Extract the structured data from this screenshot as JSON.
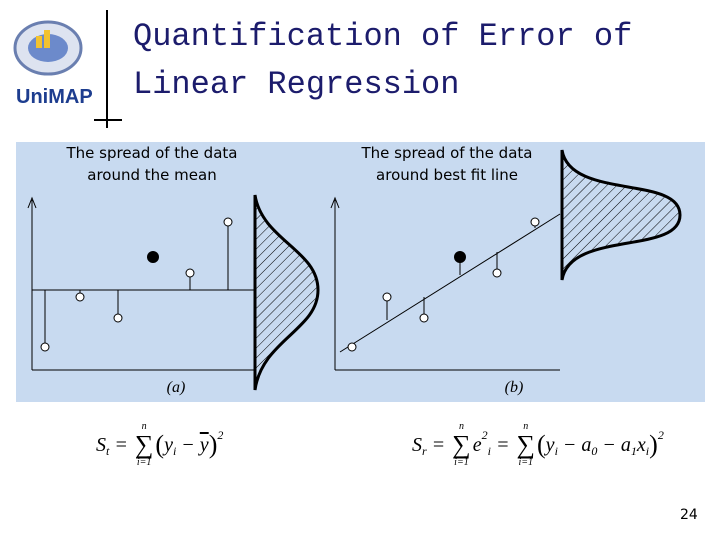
{
  "logo": {
    "text": "UniMAP"
  },
  "header": {
    "title_lines": [
      "Quantification of Error of",
      "Linear Regression"
    ]
  },
  "panels": [
    {
      "caption_lines": [
        "The spread of the data",
        "around the mean"
      ],
      "label": "(a)"
    },
    {
      "caption_lines": [
        "The spread of the data",
        "around best fit line"
      ],
      "label": "(b)"
    }
  ],
  "formulas": [
    {
      "tokens": [
        {
          "text": "S",
          "pos": "base"
        },
        {
          "text": "t",
          "pos": "sub"
        },
        {
          "text": " = ",
          "pos": "op"
        },
        {
          "sigma": "∑",
          "top": "n",
          "bottom": "i=1"
        },
        {
          "text": "(",
          "pos": "paren"
        },
        {
          "text": "y",
          "pos": "base"
        },
        {
          "text": "i",
          "pos": "sub"
        },
        {
          "text": " − ",
          "pos": "op"
        },
        {
          "text": "y",
          "pos": "bar"
        },
        {
          "text": ")",
          "pos": "paren"
        },
        {
          "text": "2",
          "pos": "sup"
        }
      ]
    },
    {
      "tokens": [
        {
          "text": "S",
          "pos": "base"
        },
        {
          "text": "r",
          "pos": "sub"
        },
        {
          "text": " = ",
          "pos": "op"
        },
        {
          "sigma": "∑",
          "top": "n",
          "bottom": "i=1"
        },
        {
          "text": "e",
          "pos": "base"
        },
        {
          "text": "2",
          "pos": "sup"
        },
        {
          "text": "i",
          "pos": "sub"
        },
        {
          "text": " = ",
          "pos": "op"
        },
        {
          "sigma": "∑",
          "top": "n",
          "bottom": "i=1"
        },
        {
          "text": "(",
          "pos": "paren"
        },
        {
          "text": "y",
          "pos": "base"
        },
        {
          "text": "i",
          "pos": "sub"
        },
        {
          "text": " − a",
          "pos": "base"
        },
        {
          "text": "0",
          "pos": "sub"
        },
        {
          "text": " − a",
          "pos": "base"
        },
        {
          "text": "1",
          "pos": "sub"
        },
        {
          "text": "x",
          "pos": "base"
        },
        {
          "text": "i",
          "pos": "sub"
        },
        {
          "text": ")",
          "pos": "paren"
        },
        {
          "text": "2",
          "pos": "sup"
        }
      ]
    }
  ],
  "footer": {
    "page_number": "24"
  }
}
